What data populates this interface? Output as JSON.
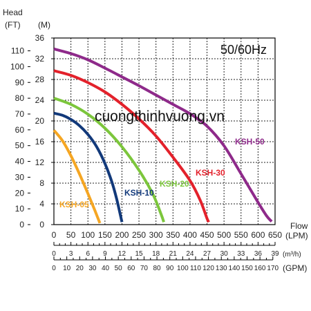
{
  "chart_data": {
    "type": "line",
    "annotation": "50/60Hz",
    "watermark": "cuongthinhvuong.vn",
    "head_label": "Head",
    "ft_unit": "(FT)",
    "m_unit": "(M)",
    "flow_label": "Flow",
    "lpm_unit": "(LPM)",
    "m3h_unit": "(m³/h)",
    "gpm_unit": "(GPM)",
    "ylim_m": [
      0,
      36
    ],
    "xlim_lpm": [
      0,
      650
    ],
    "y_ticks_m": [
      "0",
      "4",
      "8",
      "12",
      "16",
      "20",
      "24",
      "28",
      "32",
      "36"
    ],
    "y_ticks_ft": [
      "0",
      "10",
      "20",
      "30",
      "40",
      "50",
      "60",
      "70",
      "80",
      "90",
      "100",
      "110"
    ],
    "x_ticks_lpm": [
      "0",
      "50",
      "100",
      "150",
      "200",
      "250",
      "300",
      "350",
      "400",
      "450",
      "500",
      "550",
      "600",
      "650"
    ],
    "x_ticks_m3h": [
      "0",
      "3",
      "6",
      "9",
      "12",
      "15",
      "18",
      "21",
      "24",
      "27",
      "30",
      "33",
      "36",
      "39"
    ],
    "x_ticks_gpm": [
      "0",
      "10",
      "20",
      "30",
      "40",
      "50",
      "60",
      "70",
      "80",
      "90",
      "100",
      "110",
      "120",
      "130",
      "140",
      "150",
      "160",
      "170"
    ],
    "series": [
      {
        "name": "KSH-05",
        "color": "#f5a623",
        "points": [
          [
            0,
            18.2
          ],
          [
            25,
            16.2
          ],
          [
            50,
            13.3
          ],
          [
            75,
            9.8
          ],
          [
            100,
            6.0
          ],
          [
            120,
            2.8
          ],
          [
            135,
            0.3
          ]
        ]
      },
      {
        "name": "KSH-10",
        "color": "#12397a",
        "points": [
          [
            0,
            21.5
          ],
          [
            25,
            21.1
          ],
          [
            50,
            20.3
          ],
          [
            75,
            19.1
          ],
          [
            100,
            17.4
          ],
          [
            125,
            15.1
          ],
          [
            150,
            11.8
          ],
          [
            170,
            8.3
          ],
          [
            185,
            4.8
          ],
          [
            200,
            0.5
          ]
        ]
      },
      {
        "name": "KSH-20",
        "color": "#7cc63c",
        "points": [
          [
            0,
            24.4
          ],
          [
            50,
            23.2
          ],
          [
            100,
            21.3
          ],
          [
            150,
            18.6
          ],
          [
            200,
            15.0
          ],
          [
            250,
            10.5
          ],
          [
            290,
            6.0
          ],
          [
            315,
            2.0
          ],
          [
            323,
            0.5
          ]
        ]
      },
      {
        "name": "KSH-30",
        "color": "#e3212b",
        "points": [
          [
            0,
            29.7
          ],
          [
            50,
            28.8
          ],
          [
            100,
            27.4
          ],
          [
            150,
            25.6
          ],
          [
            200,
            23.2
          ],
          [
            250,
            20.4
          ],
          [
            300,
            17.1
          ],
          [
            350,
            13.0
          ],
          [
            400,
            8.5
          ],
          [
            430,
            4.7
          ],
          [
            450,
            1.2
          ],
          [
            455,
            0.5
          ]
        ]
      },
      {
        "name": "KSH-50",
        "color": "#8e2a8a",
        "points": [
          [
            0,
            33.9
          ],
          [
            50,
            33.0
          ],
          [
            100,
            31.8
          ],
          [
            150,
            30.2
          ],
          [
            200,
            28.5
          ],
          [
            250,
            26.8
          ],
          [
            300,
            25.0
          ],
          [
            350,
            23.2
          ],
          [
            400,
            21.4
          ],
          [
            450,
            19.0
          ],
          [
            500,
            15.2
          ],
          [
            550,
            9.8
          ],
          [
            600,
            4.3
          ],
          [
            625,
            1.7
          ],
          [
            640,
            0.6
          ]
        ]
      }
    ]
  }
}
